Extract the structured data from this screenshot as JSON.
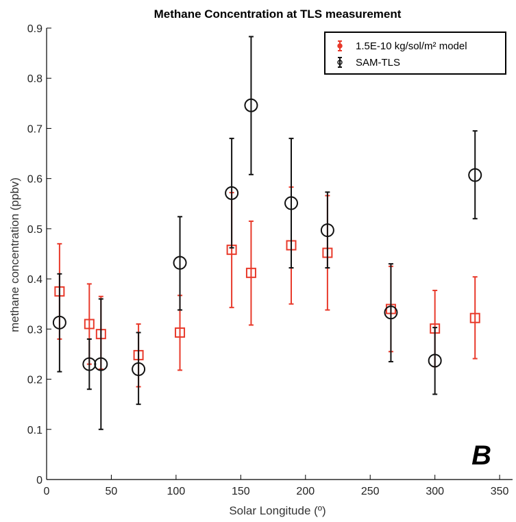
{
  "chart_data": {
    "type": "scatter",
    "title": "Methane Concentration at TLS measurement",
    "xlabel": "Solar Longitude (º)",
    "ylabel": "methane concentration (ppbv)",
    "xlim": [
      0,
      360
    ],
    "ylim": [
      0,
      0.9
    ],
    "xticks": [
      "0",
      "50",
      "100",
      "150",
      "200",
      "250",
      "300",
      "350"
    ],
    "yticks": [
      "0",
      "0.1",
      "0.2",
      "0.3",
      "0.4",
      "0.5",
      "0.6",
      "0.7",
      "0.8",
      "0.9"
    ],
    "grid": false,
    "legend_position": "top-right",
    "panel_label": "B",
    "series": [
      {
        "name": "1.5E-10 kg/sol/m² model",
        "color": "#e8392a",
        "marker": "square",
        "points": [
          {
            "x": 10,
            "y": 0.375,
            "lo": 0.28,
            "hi": 0.47
          },
          {
            "x": 33,
            "y": 0.31,
            "lo": 0.23,
            "hi": 0.39
          },
          {
            "x": 42,
            "y": 0.29,
            "lo": 0.22,
            "hi": 0.365
          },
          {
            "x": 71,
            "y": 0.248,
            "lo": 0.185,
            "hi": 0.31
          },
          {
            "x": 103,
            "y": 0.293,
            "lo": 0.218,
            "hi": 0.367
          },
          {
            "x": 143,
            "y": 0.458,
            "lo": 0.343,
            "hi": 0.572
          },
          {
            "x": 158,
            "y": 0.412,
            "lo": 0.308,
            "hi": 0.515
          },
          {
            "x": 189,
            "y": 0.467,
            "lo": 0.35,
            "hi": 0.583
          },
          {
            "x": 217,
            "y": 0.452,
            "lo": 0.338,
            "hi": 0.566
          },
          {
            "x": 266,
            "y": 0.34,
            "lo": 0.255,
            "hi": 0.425
          },
          {
            "x": 300,
            "y": 0.301,
            "lo": 0.225,
            "hi": 0.377
          },
          {
            "x": 331,
            "y": 0.322,
            "lo": 0.241,
            "hi": 0.404
          }
        ]
      },
      {
        "name": "SAM-TLS",
        "color": "#111111",
        "marker": "circle",
        "points": [
          {
            "x": 10,
            "y": 0.313,
            "lo": 0.215,
            "hi": 0.41
          },
          {
            "x": 33,
            "y": 0.23,
            "lo": 0.18,
            "hi": 0.28
          },
          {
            "x": 42,
            "y": 0.23,
            "lo": 0.1,
            "hi": 0.36
          },
          {
            "x": 71,
            "y": 0.22,
            "lo": 0.15,
            "hi": 0.293
          },
          {
            "x": 103,
            "y": 0.432,
            "lo": 0.338,
            "hi": 0.524
          },
          {
            "x": 143,
            "y": 0.571,
            "lo": 0.462,
            "hi": 0.68
          },
          {
            "x": 158,
            "y": 0.746,
            "lo": 0.608,
            "hi": 0.883
          },
          {
            "x": 189,
            "y": 0.551,
            "lo": 0.422,
            "hi": 0.68
          },
          {
            "x": 217,
            "y": 0.497,
            "lo": 0.422,
            "hi": 0.573
          },
          {
            "x": 266,
            "y": 0.333,
            "lo": 0.235,
            "hi": 0.43
          },
          {
            "x": 300,
            "y": 0.237,
            "lo": 0.17,
            "hi": 0.303
          },
          {
            "x": 331,
            "y": 0.607,
            "lo": 0.52,
            "hi": 0.695
          }
        ]
      }
    ]
  }
}
